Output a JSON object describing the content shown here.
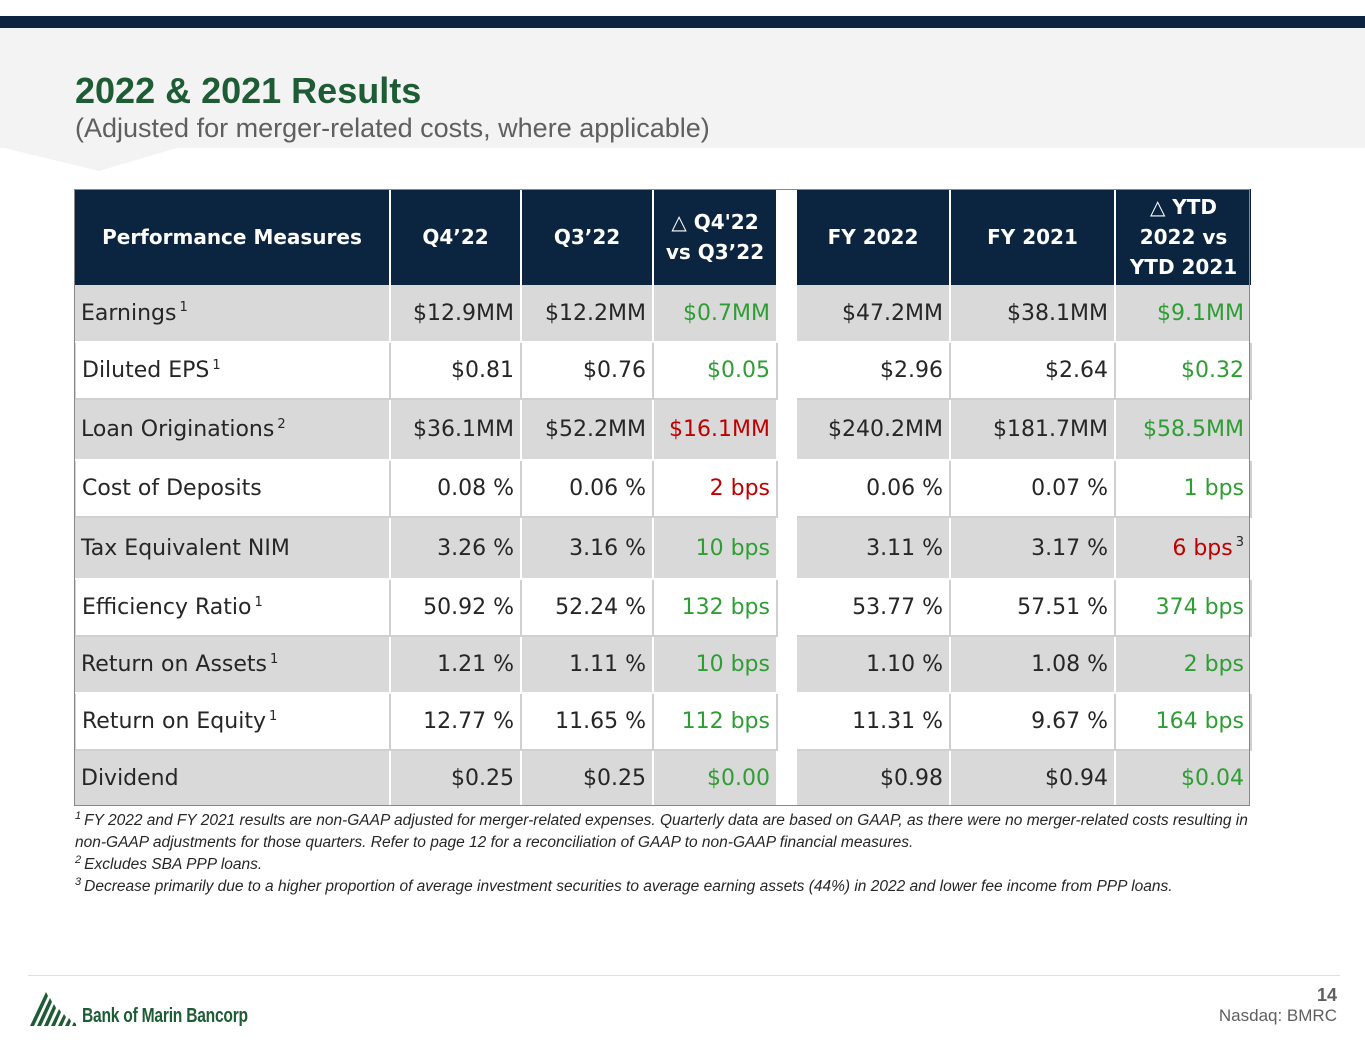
{
  "header": {
    "title": "2022 & 2021 Results",
    "subtitle": "(Adjusted for merger-related costs, where applicable)"
  },
  "table": {
    "columns": {
      "measure": "Performance Measures",
      "q4": "Q4’22",
      "q3": "Q3’22",
      "dq_line1": "△ Q4'22",
      "dq_line2": "vs Q3’22",
      "fy22": "FY 2022",
      "fy21": "FY 2021",
      "dy_line1": "△ YTD",
      "dy_line2": "2022 vs",
      "dy_line3": "YTD 2021"
    },
    "rows": [
      {
        "label": "Earnings",
        "note": "1",
        "q4": "$12.9MM",
        "q3": "$12.2MM",
        "dq": "$0.7MM",
        "fy22": "$47.2MM",
        "fy21": "$38.1MM",
        "dy": "$9.1MM",
        "dy_note": ""
      },
      {
        "label": "Diluted EPS",
        "note": "1",
        "q4": "$0.81",
        "q3": "$0.76",
        "dq": "$0.05",
        "fy22": "$2.96",
        "fy21": "$2.64",
        "dy": "$0.32",
        "dy_note": ""
      },
      {
        "label": "Loan Originations",
        "note": "2",
        "q4": "$36.1MM",
        "q3": "$52.2MM",
        "dq": "$16.1MM",
        "fy22": "$240.2MM",
        "fy21": "$181.7MM",
        "dy": "$58.5MM",
        "dy_note": ""
      },
      {
        "label": "Cost of Deposits",
        "note": "",
        "q4": "0.08 %",
        "q3": "0.06 %",
        "dq": "2 bps",
        "fy22": "0.06 %",
        "fy21": "0.07 %",
        "dy": "1 bps",
        "dy_note": ""
      },
      {
        "label": "Tax Equivalent NIM",
        "note": "",
        "q4": "3.26 %",
        "q3": "3.16 %",
        "dq": "10 bps",
        "fy22": "3.11 %",
        "fy21": "3.17 %",
        "dy": "6 bps",
        "dy_note": "3"
      },
      {
        "label": "Efficiency Ratio",
        "note": "1",
        "q4": "50.92 %",
        "q3": "52.24 %",
        "dq": "132 bps",
        "fy22": "53.77 %",
        "fy21": "57.51 %",
        "dy": "374 bps",
        "dy_note": ""
      },
      {
        "label": "Return on Assets",
        "note": "1",
        "q4": "1.21 %",
        "q3": "1.11 %",
        "dq": "10 bps",
        "fy22": "1.10 %",
        "fy21": "1.08 %",
        "dy": "2 bps",
        "dy_note": ""
      },
      {
        "label": "Return on Equity",
        "note": "1",
        "q4": "12.77 %",
        "q3": "11.65 %",
        "dq": "112 bps",
        "fy22": "11.31 %",
        "fy21": "9.67 %",
        "dy": "164 bps",
        "dy_note": ""
      },
      {
        "label": "Dividend",
        "note": "",
        "q4": "$0.25",
        "q3": "$0.25",
        "dq": "$0.00",
        "fy22": "$0.98",
        "fy21": "$0.94",
        "dy": "$0.04",
        "dy_note": ""
      }
    ]
  },
  "colors": {
    "positive": "#2e9e34",
    "negative": "#c00000",
    "header_bg": "#0b2540",
    "title": "#1e5c35"
  },
  "footnotes": [
    {
      "mark": "1",
      "text": "FY 2022 and FY 2021 results are non-GAAP adjusted for merger-related expenses. Quarterly data are based on GAAP, as there were no merger-related costs resulting in non-GAAP adjustments for those quarters.  Refer to page 12 for a reconciliation of GAAP to non-GAAP financial measures."
    },
    {
      "mark": "2",
      "text": "Excludes SBA PPP loans."
    },
    {
      "mark": "3",
      "text": "Decrease primarily due to a higher proportion of average investment securities to average earning assets (44%) in 2022 and lower fee income from PPP loans."
    }
  ],
  "footer": {
    "logo_text": "Bank of Marin Bancorp",
    "page_number": "14",
    "exchange": "Nasdaq: BMRC"
  }
}
